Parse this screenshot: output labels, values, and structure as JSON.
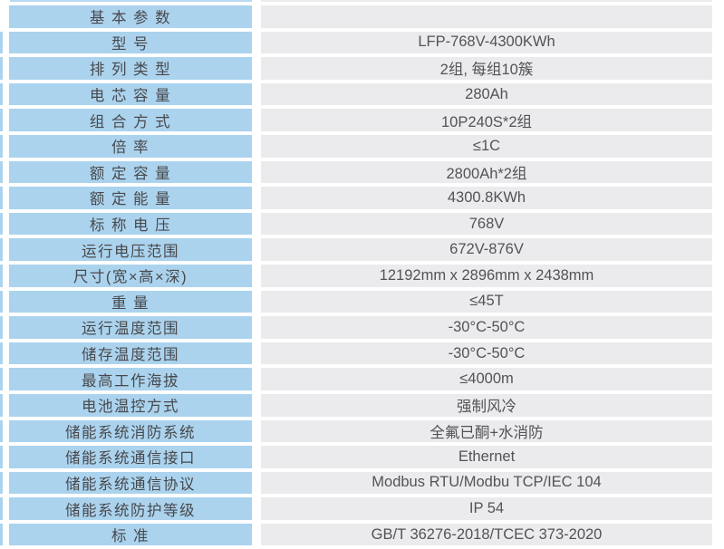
{
  "colors": {
    "label_bg": "#abd3ee",
    "value_bg": "#ebebed",
    "label_text": "#48494c",
    "value_text": "#525356",
    "page_bg": "#ffffff"
  },
  "table": {
    "rows": [
      {
        "label": "基 本 参 数",
        "value": ""
      },
      {
        "label": "型 号",
        "value": "LFP-768V-4300KWh"
      },
      {
        "label": "排 列 类 型",
        "value": "2组, 每组10簇"
      },
      {
        "label": "电 芯 容 量",
        "value": "280Ah"
      },
      {
        "label": "组 合 方 式",
        "value": "10P240S*2组"
      },
      {
        "label": "倍 率",
        "value": "≤1C"
      },
      {
        "label": "额 定 容 量",
        "value": "2800Ah*2组"
      },
      {
        "label": "额 定 能 量",
        "value": "4300.8KWh"
      },
      {
        "label": "标 称 电 压",
        "value": "768V"
      },
      {
        "label": "运行电压范围",
        "value": "672V-876V"
      },
      {
        "label": "尺寸(宽×高×深)",
        "value": "12192mm x 2896mm x 2438mm"
      },
      {
        "label": "重 量",
        "value": "≤45T"
      },
      {
        "label": "运行温度范围",
        "value": "-30°C-50°C"
      },
      {
        "label": "储存温度范围",
        "value": "-30°C-50°C"
      },
      {
        "label": "最高工作海拔",
        "value": "≤4000m"
      },
      {
        "label": "电池温控方式",
        "value": "强制风冷"
      },
      {
        "label": "储能系统消防系统",
        "value": "全氟已酮+水消防"
      },
      {
        "label": "储能系统通信接口",
        "value": "Ethernet"
      },
      {
        "label": "储能系统通信协议",
        "value": "Modbus RTU/Modbu TCP/IEC 104"
      },
      {
        "label": "储能系统防护等级",
        "value": "IP 54"
      },
      {
        "label": "标 准",
        "value": "GB/T 36276-2018/TCEC 373-2020"
      }
    ]
  }
}
